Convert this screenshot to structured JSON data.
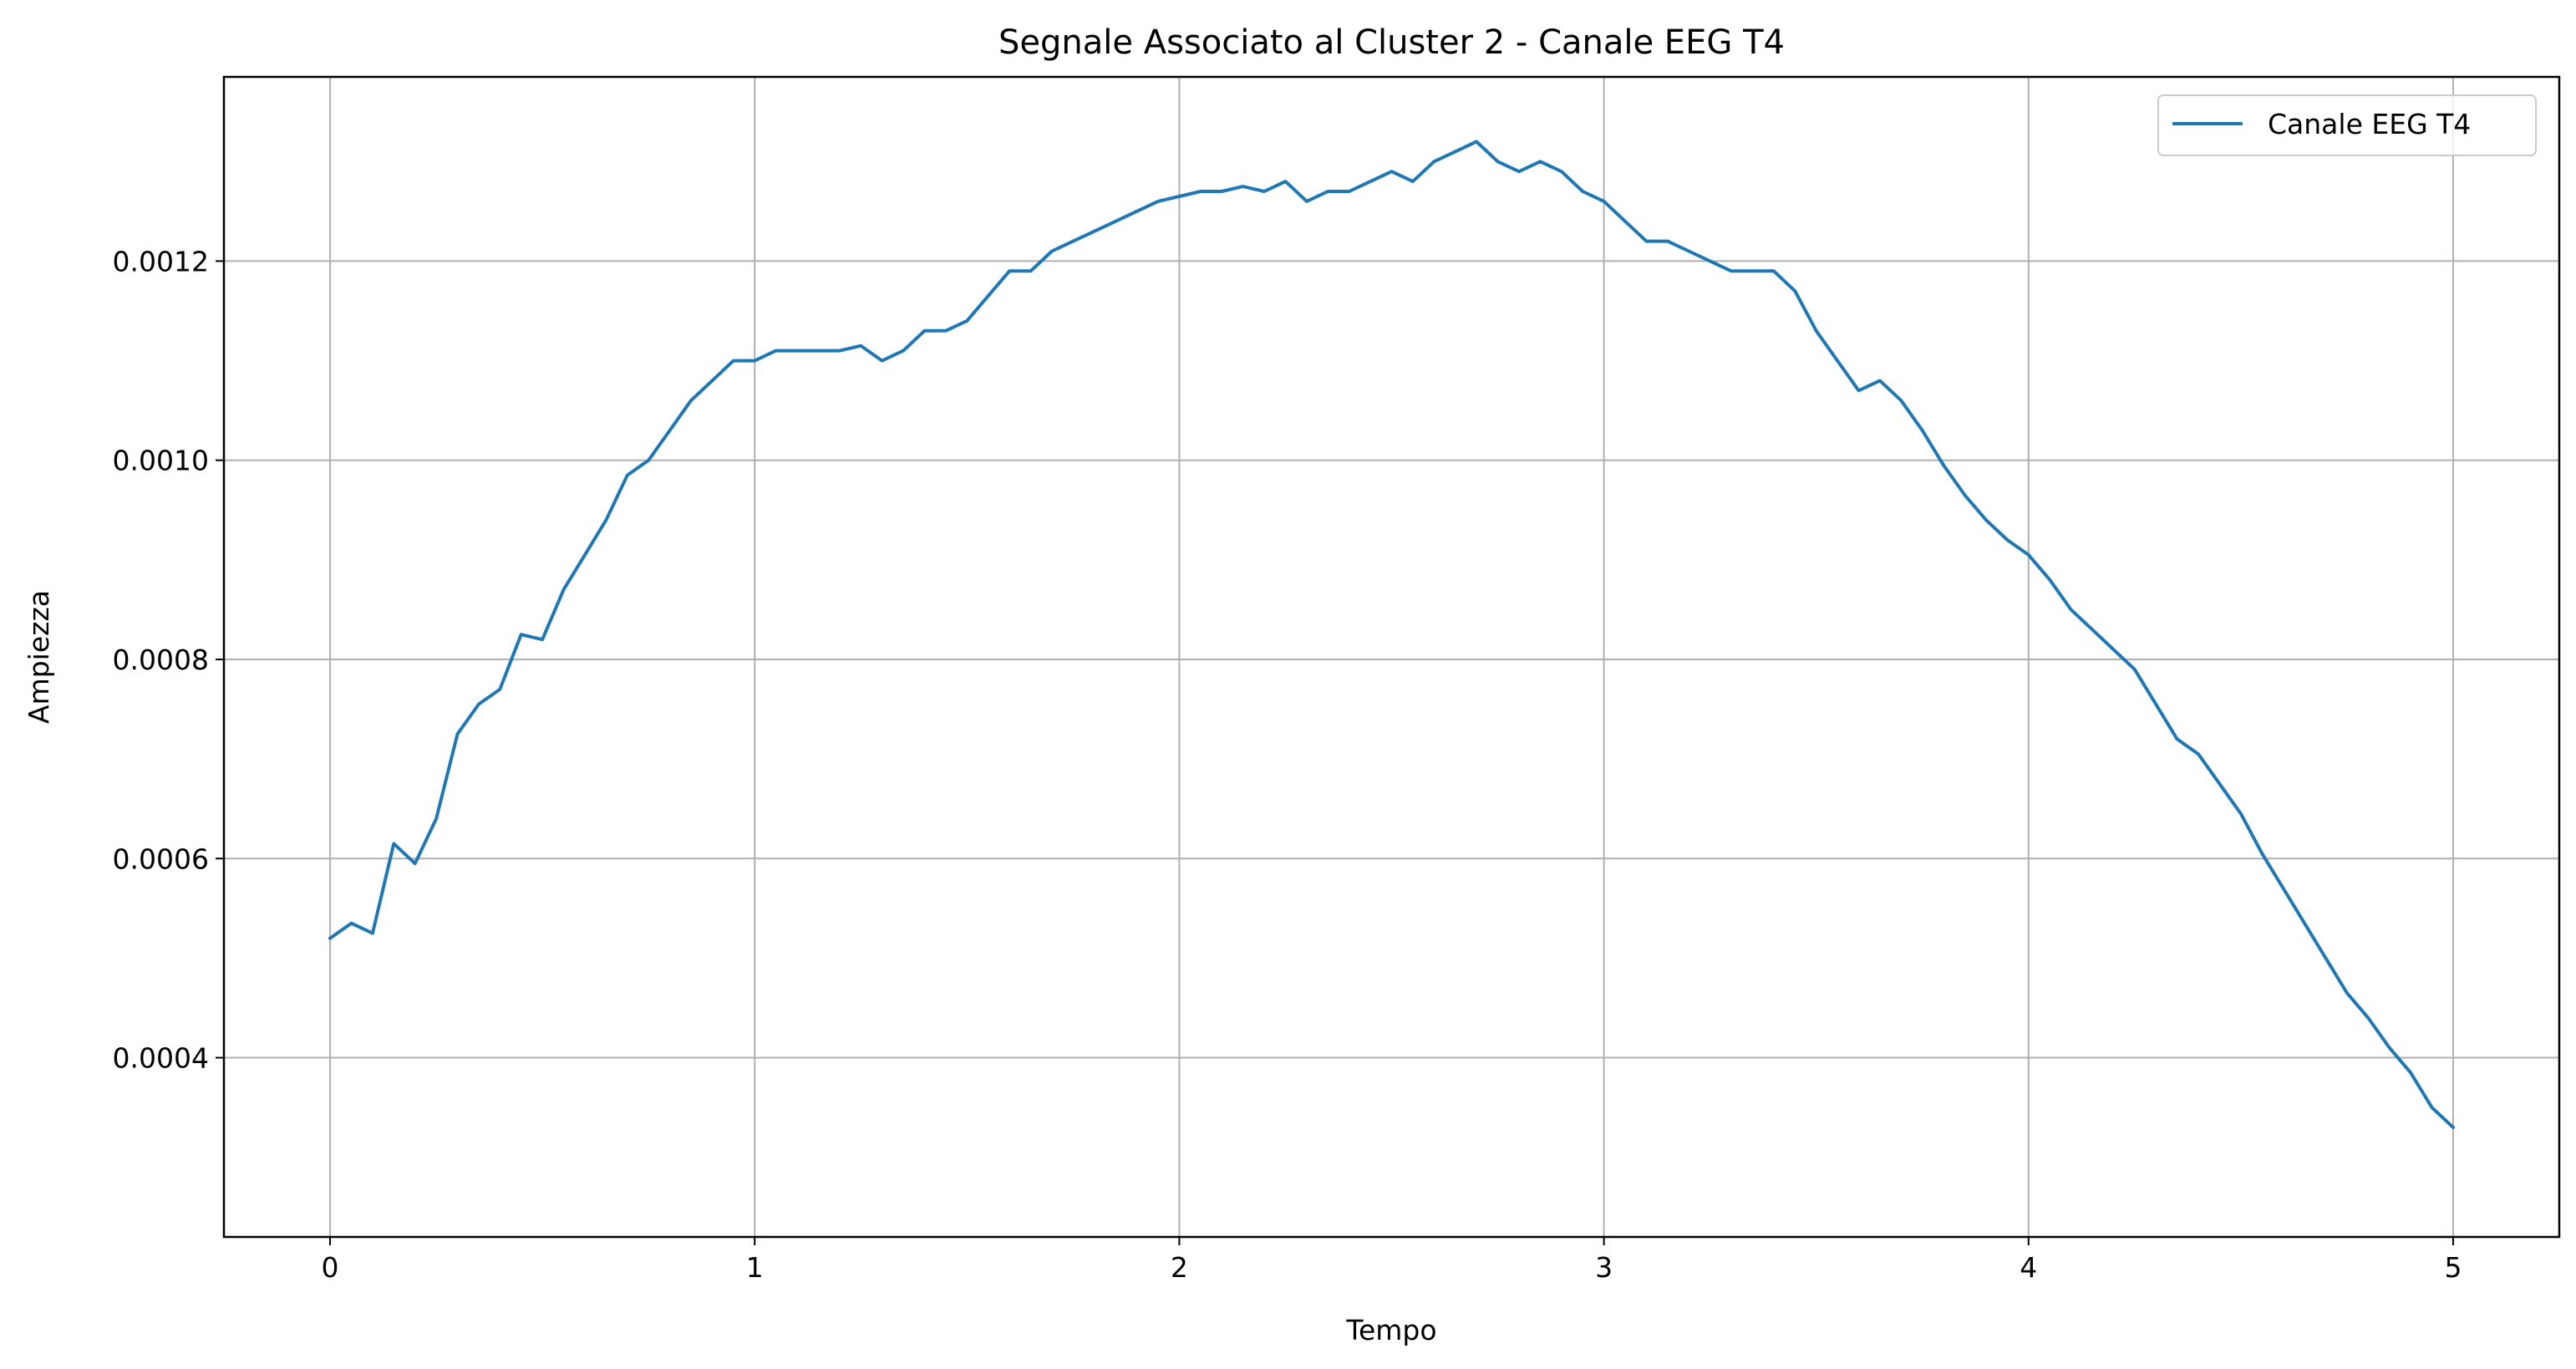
{
  "chart_data": {
    "type": "line",
    "title": "Segnale Associato al Cluster 2 - Canale EEG T4",
    "xlabel": "Tempo",
    "ylabel": "Ampiezza",
    "xlim": [
      -0.25,
      5.25
    ],
    "ylim": [
      0.00022,
      0.001385
    ],
    "xticks": [
      0,
      1,
      2,
      3,
      4,
      5
    ],
    "xtick_labels": [
      "0",
      "1",
      "2",
      "3",
      "4",
      "5"
    ],
    "yticks": [
      0.0004,
      0.0006,
      0.0008,
      0.001,
      0.0012
    ],
    "ytick_labels": [
      "0.0004",
      "0.0006",
      "0.0008",
      "0.0010",
      "0.0012"
    ],
    "grid": true,
    "legend_position": "top-right",
    "colors": {
      "series": "#1f77b4",
      "grid": "#b0b0b0",
      "axes": "#000000"
    },
    "series": [
      {
        "name": "Canale EEG T4",
        "x": [
          0,
          0.05,
          0.1,
          0.15,
          0.2,
          0.25,
          0.3,
          0.35,
          0.4,
          0.45,
          0.5,
          0.55,
          0.6,
          0.65,
          0.7,
          0.75,
          0.8,
          0.85,
          0.9,
          0.95,
          1,
          1.05,
          1.1,
          1.15,
          1.2,
          1.25,
          1.3,
          1.35,
          1.4,
          1.45,
          1.5,
          1.55,
          1.6,
          1.65,
          1.7,
          1.75,
          1.8,
          1.85,
          1.9,
          1.95,
          2,
          2.05,
          2.1,
          2.15,
          2.2,
          2.25,
          2.3,
          2.35,
          2.4,
          2.45,
          2.5,
          2.55,
          2.6,
          2.65,
          2.7,
          2.75,
          2.8,
          2.85,
          2.9,
          2.95,
          3,
          3.05,
          3.1,
          3.15,
          3.2,
          3.25,
          3.3,
          3.35,
          3.4,
          3.45,
          3.5,
          3.55,
          3.6,
          3.65,
          3.7,
          3.75,
          3.8,
          3.85,
          3.9,
          3.95,
          4,
          4.05,
          4.1,
          4.15,
          4.2,
          4.25,
          4.3,
          4.35,
          4.4,
          4.45,
          4.5,
          4.55,
          4.6,
          4.65,
          4.7,
          4.75,
          4.8,
          4.85,
          4.9,
          4.95,
          5
        ],
        "y": [
          0.00052,
          0.000535,
          0.000525,
          0.000615,
          0.000595,
          0.00064,
          0.000725,
          0.000755,
          0.00077,
          0.000825,
          0.00082,
          0.00087,
          0.000905,
          0.00094,
          0.000985,
          0.001,
          0.00103,
          0.00106,
          0.00108,
          0.0011,
          0.0011,
          0.00111,
          0.00111,
          0.00111,
          0.00111,
          0.001115,
          0.0011,
          0.00111,
          0.00113,
          0.00113,
          0.00114,
          0.001165,
          0.00119,
          0.00119,
          0.00121,
          0.00122,
          0.00123,
          0.00124,
          0.00125,
          0.00126,
          0.001265,
          0.00127,
          0.00127,
          0.001275,
          0.00127,
          0.00128,
          0.00126,
          0.00127,
          0.00127,
          0.00128,
          0.00129,
          0.00128,
          0.0013,
          0.00131,
          0.00132,
          0.0013,
          0.00129,
          0.0013,
          0.00129,
          0.00127,
          0.00126,
          0.00124,
          0.00122,
          0.00122,
          0.00121,
          0.0012,
          0.00119,
          0.00119,
          0.00119,
          0.00117,
          0.00113,
          0.0011,
          0.00107,
          0.00108,
          0.00106,
          0.00103,
          0.000995,
          0.000965,
          0.00094,
          0.00092,
          0.000905,
          0.00088,
          0.00085,
          0.00083,
          0.00081,
          0.00079,
          0.000755,
          0.00072,
          0.000705,
          0.000675,
          0.000645,
          0.000605,
          0.00057,
          0.000535,
          0.0005,
          0.000465,
          0.00044,
          0.00041,
          0.000385,
          0.00035,
          0.00033
        ]
      }
    ]
  }
}
